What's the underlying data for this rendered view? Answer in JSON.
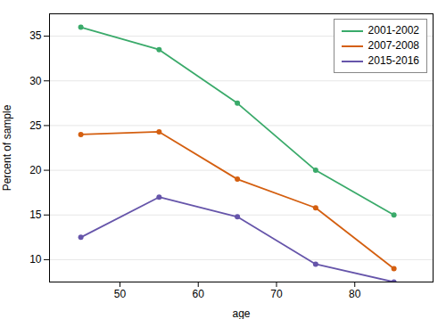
{
  "chart_data": {
    "type": "line",
    "xlabel": "age",
    "ylabel": "Percent of sample",
    "x": [
      45,
      55,
      65,
      75,
      85
    ],
    "series": [
      {
        "name": "2001-2002",
        "color": "#3aaa6a",
        "values": [
          36.0,
          33.5,
          27.5,
          20.0,
          15.0
        ]
      },
      {
        "name": "2007-2008",
        "color": "#d45f10",
        "values": [
          24.0,
          24.3,
          19.0,
          15.8,
          9.0
        ]
      },
      {
        "name": "2015-2016",
        "color": "#6655aa",
        "values": [
          12.5,
          17.0,
          14.8,
          9.5,
          7.5
        ]
      }
    ],
    "xlim": [
      41,
      90
    ],
    "ylim": [
      7.5,
      37.5
    ],
    "xticks": [
      50,
      60,
      70,
      80
    ],
    "yticks": [
      10,
      15,
      20,
      25,
      30,
      35
    ],
    "grid": "y",
    "legend": "upper right",
    "marker": "circle"
  }
}
